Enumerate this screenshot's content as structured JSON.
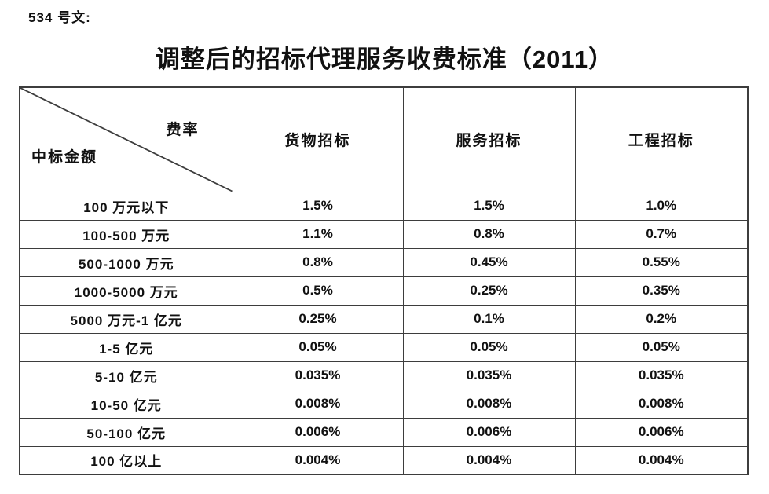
{
  "colors": {
    "page_bg": "#ffffff",
    "text": "#111111",
    "border": "#3d3d3d"
  },
  "document": {
    "ref": "534 号文:",
    "title": "调整后的招标代理服务收费标准（2011）"
  },
  "table": {
    "corner": {
      "top_right": "费率",
      "bottom_left": "中标金额"
    },
    "columns": [
      "货物招标",
      "服务招标",
      "工程招标"
    ],
    "rows": [
      {
        "label": "100 万元以下",
        "values": [
          "1.5%",
          "1.5%",
          "1.0%"
        ]
      },
      {
        "label": "100-500 万元",
        "values": [
          "1.1%",
          "0.8%",
          "0.7%"
        ]
      },
      {
        "label": "500-1000 万元",
        "values": [
          "0.8%",
          "0.45%",
          "0.55%"
        ]
      },
      {
        "label": "1000-5000 万元",
        "values": [
          "0.5%",
          "0.25%",
          "0.35%"
        ]
      },
      {
        "label": "5000 万元-1 亿元",
        "values": [
          "0.25%",
          "0.1%",
          "0.2%"
        ]
      },
      {
        "label": "1-5 亿元",
        "values": [
          "0.05%",
          "0.05%",
          "0.05%"
        ]
      },
      {
        "label": "5-10 亿元",
        "values": [
          "0.035%",
          "0.035%",
          "0.035%"
        ]
      },
      {
        "label": "10-50 亿元",
        "values": [
          "0.008%",
          "0.008%",
          "0.008%"
        ]
      },
      {
        "label": "50-100 亿元",
        "values": [
          "0.006%",
          "0.006%",
          "0.006%"
        ]
      },
      {
        "label": "100 亿以上",
        "values": [
          "0.004%",
          "0.004%",
          "0.004%"
        ]
      }
    ]
  }
}
